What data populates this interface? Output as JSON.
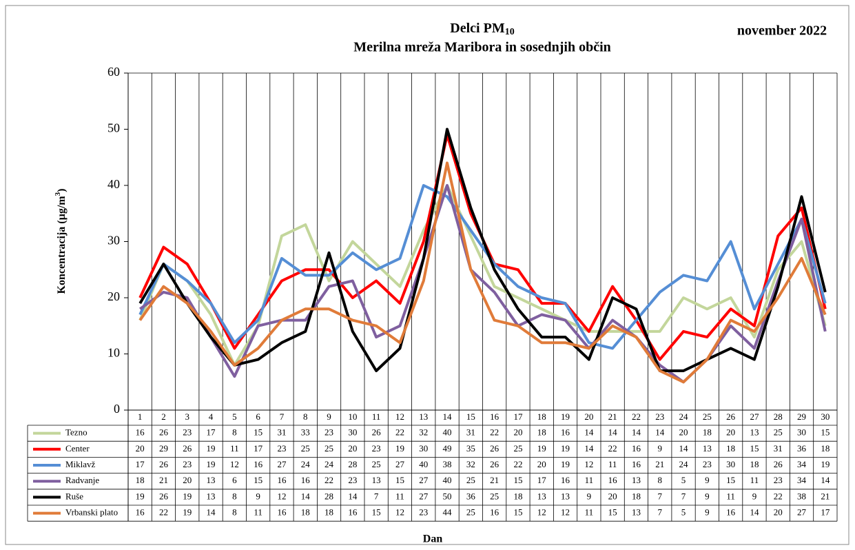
{
  "chart_data": {
    "type": "line",
    "title": {
      "text": "Delci PM",
      "subscript": "10"
    },
    "subtitle": "Merilna mreža Maribora in sosednjih občin",
    "period": "november 2022",
    "y_label": {
      "text": "Koncentracija (µg/m",
      "superscript": "3",
      "suffix": ")"
    },
    "x_label": "Dan",
    "categories": [
      "1",
      "2",
      "3",
      "4",
      "5",
      "6",
      "7",
      "8",
      "9",
      "10",
      "11",
      "12",
      "13",
      "14",
      "15",
      "16",
      "17",
      "18",
      "19",
      "20",
      "21",
      "22",
      "23",
      "24",
      "25",
      "26",
      "27",
      "28",
      "29",
      "30"
    ],
    "ylim": [
      0,
      60
    ],
    "yticks": [
      0,
      10,
      20,
      30,
      40,
      50,
      60
    ],
    "grid": false,
    "series": [
      {
        "name": "Tezno",
        "color": "#c3d69b",
        "values": [
          16,
          26,
          23,
          17,
          8,
          15,
          31,
          33,
          23,
          30,
          26,
          22,
          32,
          40,
          31,
          22,
          20,
          18,
          16,
          14,
          14,
          14,
          14,
          20,
          18,
          20,
          13,
          25,
          30,
          15
        ]
      },
      {
        "name": "Center",
        "color": "#ff0000",
        "values": [
          20,
          29,
          26,
          19,
          11,
          17,
          23,
          25,
          25,
          20,
          23,
          19,
          30,
          49,
          35,
          26,
          25,
          19,
          19,
          14,
          22,
          16,
          9,
          14,
          13,
          18,
          15,
          31,
          36,
          18
        ]
      },
      {
        "name": "Miklavž",
        "color": "#558ed5",
        "values": [
          17,
          26,
          23,
          19,
          12,
          16,
          27,
          24,
          24,
          28,
          25,
          27,
          40,
          38,
          32,
          26,
          22,
          20,
          19,
          12,
          11,
          16,
          21,
          24,
          23,
          30,
          18,
          26,
          34,
          19
        ]
      },
      {
        "name": "Radvanje",
        "color": "#7f5f9f",
        "values": [
          18,
          21,
          20,
          13,
          6,
          15,
          16,
          16,
          22,
          23,
          13,
          15,
          27,
          40,
          25,
          21,
          15,
          17,
          16,
          11,
          16,
          13,
          8,
          5,
          9,
          15,
          11,
          23,
          34,
          14
        ]
      },
      {
        "name": "Ruše",
        "color": "#000000",
        "values": [
          19,
          26,
          19,
          13,
          8,
          9,
          12,
          14,
          28,
          14,
          7,
          11,
          27,
          50,
          36,
          25,
          18,
          13,
          13,
          9,
          20,
          18,
          7,
          7,
          9,
          11,
          9,
          22,
          38,
          21
        ]
      },
      {
        "name": "Vrbanski plato",
        "color": "#e07b39",
        "values": [
          16,
          22,
          19,
          14,
          8,
          11,
          16,
          18,
          18,
          16,
          15,
          12,
          23,
          44,
          25,
          16,
          15,
          12,
          12,
          11,
          15,
          13,
          7,
          5,
          9,
          16,
          14,
          20,
          27,
          17
        ]
      }
    ]
  }
}
